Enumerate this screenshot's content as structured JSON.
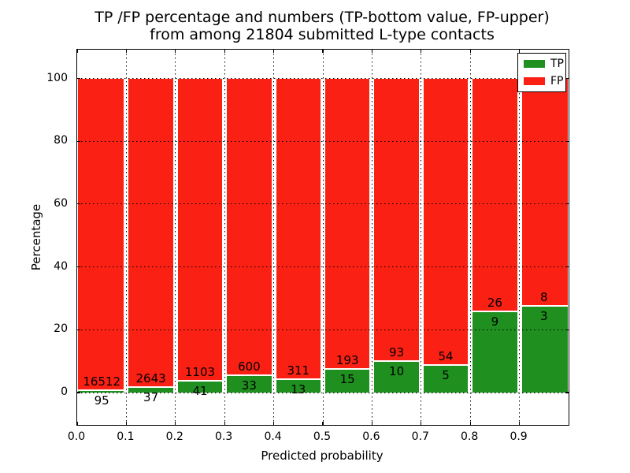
{
  "chart_data": {
    "type": "bar",
    "variant": "stacked-percentage",
    "title": "TP /FP percentage and numbers (TP-bottom value, FP-upper)",
    "subtitle": "from among 21804 submitted L-type contacts",
    "xlabel": "Predicted probability",
    "ylabel": "Percentage",
    "total_submitted": 21804,
    "x_bin_width": 0.1,
    "x_tick_labels": [
      "0.0",
      "0.1",
      "0.2",
      "0.3",
      "0.4",
      "0.5",
      "0.6",
      "0.7",
      "0.8",
      "0.9"
    ],
    "y_tick_values": [
      0,
      20,
      40,
      60,
      80,
      100
    ],
    "xlim": [
      0.0,
      1.0
    ],
    "ylim": [
      -10.4,
      109.4
    ],
    "grid": {
      "style": "dotted",
      "color": "#000000",
      "horizontal": true,
      "vertical": true
    },
    "legend": {
      "position": "upper-right",
      "entries": [
        {
          "label": "TP",
          "color": "#1f8f1f"
        },
        {
          "label": "FP",
          "color": "#fa2014"
        }
      ]
    },
    "bins": [
      {
        "x_start": 0.0,
        "tp": 95,
        "fp": 16512
      },
      {
        "x_start": 0.1,
        "tp": 37,
        "fp": 2643
      },
      {
        "x_start": 0.2,
        "tp": 41,
        "fp": 1103
      },
      {
        "x_start": 0.3,
        "tp": 33,
        "fp": 600
      },
      {
        "x_start": 0.4,
        "tp": 13,
        "fp": 311
      },
      {
        "x_start": 0.5,
        "tp": 15,
        "fp": 193
      },
      {
        "x_start": 0.6,
        "tp": 10,
        "fp": 93
      },
      {
        "x_start": 0.7,
        "tp": 5,
        "fp": 54
      },
      {
        "x_start": 0.8,
        "tp": 9,
        "fp": 26
      },
      {
        "x_start": 0.9,
        "tp": 3,
        "fp": 8
      }
    ]
  },
  "colors": {
    "tp_green": "#1f8f1f",
    "fp_red": "#fa2014",
    "bar_separator": "#ffffff",
    "grid": "#000000",
    "background": "#ffffff",
    "text": "#000000"
  }
}
